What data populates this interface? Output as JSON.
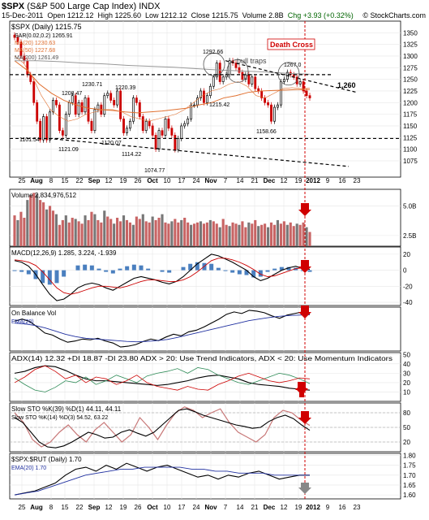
{
  "header": {
    "symbol": "$SPX",
    "name": "(S&P 500 Large Cap Index)",
    "exchange": "INDX",
    "date": "15-Dec-2011",
    "open": "Open 1212.12",
    "high": "High 1225.60",
    "low": "Low 1212.12",
    "close": "Close 1215.75",
    "volume": "Volume 2.8B",
    "change": "Chg +3.93 (+0.32%)",
    "watermark": "© StockCharts.com"
  },
  "colors": {
    "up": "#000000",
    "down": "#cc0000",
    "ma50": "#e07030",
    "ma200": "#999999",
    "annotation": "#d00000",
    "ema": "#2030a0"
  },
  "x_axis": {
    "ticks": [
      "25",
      "Aug",
      "8",
      "15",
      "22",
      "Sep",
      "12",
      "19",
      "26",
      "Oct",
      "10",
      "17",
      "24",
      "Nov",
      "7",
      "14",
      "21",
      "Dec",
      "12",
      "19",
      "2012",
      "9",
      "16",
      "23"
    ],
    "bold": [
      "Aug",
      "Sep",
      "Oct",
      "Nov",
      "Dec",
      "2012"
    ]
  },
  "chart_data": [
    {
      "type": "line",
      "panel": "price",
      "title": "$SPX (Daily) 1215.75",
      "legend": [
        "SAR(0.02,0.2) 1265.91",
        "MA(20) 1230.63",
        "MA(50) 1227.68",
        "MA(200) 1261.49"
      ],
      "ylim": [
        1040,
        1375
      ],
      "yticks": [
        1075,
        1100,
        1125,
        1150,
        1175,
        1200,
        1225,
        1250,
        1275,
        1300,
        1325,
        1350
      ],
      "annotations": [
        "1101.54",
        "1121.09",
        "1208.47",
        "1230.71",
        "1120.07",
        "1114.22",
        "1220.39",
        "1074.77",
        "1292.66",
        "1215.42",
        "1158.66",
        "1267.0",
        "bull traps",
        "Death Cross",
        "1,260"
      ],
      "series": [
        {
          "name": "SPX close",
          "values": [
            1340,
            1330,
            1300,
            1290,
            1260,
            1245,
            1200,
            1160,
            1120,
            1170,
            1120,
            1180,
            1205,
            1195,
            1140,
            1130,
            1175,
            1200,
            1215,
            1175,
            1200,
            1180,
            1210,
            1160,
            1140,
            1185,
            1195,
            1175,
            1215,
            1220,
            1205,
            1195,
            1225,
            1165,
            1135,
            1145,
            1160,
            1210,
            1200,
            1170,
            1140,
            1160,
            1150,
            1130,
            1100,
            1140,
            1130,
            1165,
            1145,
            1130,
            1099,
            1123,
            1150,
            1155,
            1165,
            1195,
            1195,
            1210,
            1225,
            1200,
            1215,
            1235,
            1255,
            1285,
            1245,
            1255,
            1260,
            1290,
            1285,
            1275,
            1265,
            1250,
            1260,
            1240,
            1255,
            1230,
            1225,
            1210,
            1200,
            1195,
            1160,
            1190,
            1195,
            1245,
            1250,
            1265,
            1260,
            1255,
            1240,
            1245,
            1225,
            1215,
            1210
          ]
        },
        {
          "name": "MA(20)",
          "values": [
            1300,
            1285,
            1255,
            1215,
            1185,
            1170,
            1160,
            1165,
            1175,
            1180,
            1185,
            1185,
            1180,
            1170,
            1165,
            1160,
            1165,
            1170,
            1175,
            1185,
            1200,
            1215,
            1225,
            1230,
            1240,
            1245,
            1235,
            1215,
            1210,
            1220,
            1230,
            1232,
            1230,
            1231
          ]
        },
        {
          "name": "MA(50)",
          "values": [
            1290,
            1270,
            1240,
            1220,
            1205,
            1195,
            1188,
            1185,
            1183,
            1180,
            1178,
            1180,
            1182,
            1185,
            1188,
            1195,
            1200,
            1210,
            1215,
            1222,
            1225,
            1226,
            1227,
            1228,
            1228
          ]
        },
        {
          "name": "MA(200)",
          "values": [
            1290,
            1290,
            1288,
            1285,
            1283,
            1280,
            1278,
            1276,
            1273,
            1270,
            1268,
            1266,
            1263,
            1261
          ]
        }
      ]
    },
    {
      "type": "bar",
      "panel": "volume",
      "title": "Volume 2,834,976,512",
      "ylim": [
        1.6,
        6.4
      ],
      "yticks": [
        "2.5B",
        "5.0B"
      ],
      "values": [
        4.2,
        3.8,
        4.5,
        4.0,
        5.5,
        5.9,
        6.1,
        6.0,
        5.5,
        5.3,
        4.7,
        5.0,
        4.6,
        4.3,
        3.4,
        3.8,
        4.2,
        3.6,
        4.0,
        3.9,
        3.7,
        3.5,
        4.2,
        3.8,
        4.5,
        4.3,
        3.8,
        3.6,
        4.6,
        4.1,
        3.9,
        3.5,
        4.0,
        3.7,
        4.2,
        3.8,
        3.6,
        3.4,
        4.1,
        3.9,
        4.3,
        3.7,
        3.6,
        4.1,
        3.8,
        4.0,
        4.3,
        3.6,
        3.5,
        3.7,
        3.9,
        3.6,
        3.8,
        4.0,
        3.6,
        3.4,
        3.5,
        3.6,
        3.7,
        3.5,
        3.6,
        3.8,
        3.7,
        3.5,
        3.2,
        3.9,
        3.4,
        3.3,
        3.6,
        3.5,
        3.4,
        3.7,
        3.2,
        3.6,
        3.5,
        3.8,
        3.3,
        3.4,
        3.5,
        3.2,
        3.6,
        3.4,
        3.8,
        3.5,
        3.7,
        3.4,
        3.6,
        3.3,
        3.5,
        3.4,
        3.6,
        3.2,
        2.8
      ]
    },
    {
      "type": "line",
      "panel": "macd",
      "title": "MACD(12,26,9) 1.285, 3.224, -1.939",
      "ylim": [
        -44,
        29
      ],
      "yticks": [
        -40,
        -20,
        0,
        20
      ],
      "series": [
        {
          "name": "MACD",
          "values": [
            12,
            10,
            5,
            -5,
            -18,
            -30,
            -38,
            -36,
            -30,
            -22,
            -18,
            -16,
            -18,
            -22,
            -25,
            -20,
            -15,
            -10,
            -8,
            -10,
            -12,
            -15,
            -17,
            -14,
            -8,
            0,
            8,
            14,
            20,
            18,
            14,
            10,
            5,
            0,
            -8,
            -13,
            -10,
            -5,
            0,
            3,
            5,
            2,
            1
          ]
        },
        {
          "name": "Signal",
          "values": [
            13,
            12,
            10,
            6,
            -2,
            -12,
            -22,
            -28,
            -30,
            -28,
            -25,
            -22,
            -20,
            -20,
            -21,
            -22,
            -20,
            -17,
            -14,
            -12,
            -12,
            -13,
            -14,
            -14,
            -12,
            -8,
            -2,
            5,
            12,
            15,
            15,
            13,
            10,
            6,
            1,
            -5,
            -8,
            -7,
            -4,
            -1,
            2,
            3,
            3
          ]
        },
        {
          "name": "Histogram",
          "values": [
            -1,
            -2,
            -5,
            -11,
            -16,
            -18,
            -16,
            -8,
            0,
            6,
            7,
            6,
            2,
            -2,
            -4,
            2,
            5,
            7,
            6,
            2,
            0,
            -2,
            -3,
            0,
            4,
            8,
            10,
            9,
            8,
            3,
            -1,
            -3,
            -5,
            -6,
            -9,
            -8,
            -2,
            2,
            4,
            4,
            3,
            -1,
            -2
          ]
        }
      ]
    },
    {
      "type": "line",
      "panel": "obv",
      "title": "On Balance Vol",
      "legend": [
        "EMA(20)"
      ],
      "series": [
        {
          "name": "OBV",
          "values": [
            5,
            10,
            4,
            -10,
            -25,
            -30,
            -40,
            -48,
            -45,
            -40,
            -42,
            -38,
            -45,
            -50,
            -60,
            -58,
            -54,
            -46,
            -40,
            -44,
            -35,
            -28,
            -32,
            -22,
            -18,
            -10,
            0,
            10,
            22,
            28,
            24,
            32,
            30,
            26,
            18,
            12,
            20,
            24,
            28,
            22
          ]
        },
        {
          "name": "EMA(20)",
          "values": [
            0,
            -2,
            -6,
            -12,
            -20,
            -28,
            -34,
            -38,
            -40,
            -42,
            -44,
            -46,
            -47,
            -46,
            -44,
            -41,
            -36,
            -30,
            -24,
            -18,
            -12,
            -6,
            0,
            6,
            10,
            14,
            17,
            19,
            20,
            21
          ]
        }
      ]
    },
    {
      "type": "line",
      "panel": "adx",
      "title": "ADX(14) 12.32 +DI 18.87 -DI 23.80 ADX > 20: Use Trend Indicators, ADX < 20: Use Momentum Indicators",
      "ylim": [
        0,
        52
      ],
      "yticks": [
        10,
        20,
        30,
        40,
        50
      ],
      "series": [
        {
          "name": "ADX",
          "values": [
            30,
            32,
            36,
            38,
            37,
            33,
            28,
            24,
            22,
            22,
            21,
            20,
            19,
            18,
            17,
            18,
            20,
            22,
            25,
            27,
            28,
            26,
            24,
            20,
            18,
            17,
            16,
            14,
            13,
            12
          ]
        },
        {
          "name": "+DI",
          "values": [
            25,
            18,
            12,
            10,
            15,
            22,
            20,
            26,
            18,
            22,
            28,
            24,
            20,
            27,
            30,
            32,
            35,
            30,
            36,
            34,
            28,
            24,
            20,
            18,
            22,
            26,
            30,
            28,
            24,
            19
          ]
        },
        {
          "name": "-DI",
          "values": [
            20,
            26,
            34,
            38,
            32,
            24,
            28,
            20,
            26,
            24,
            18,
            22,
            28,
            20,
            16,
            14,
            12,
            16,
            13,
            12,
            18,
            22,
            27,
            30,
            26,
            22,
            20,
            22,
            25,
            24
          ]
        }
      ]
    },
    {
      "type": "line",
      "panel": "stochastics",
      "title": "Slow STO %K(39) %D(1) 44.11, 44.11",
      "legend": [
        "Slow STO %K(14) %D(3) 54.52, 63.22"
      ],
      "ylim": [
        0,
        100
      ],
      "yticks": [
        20,
        50,
        80
      ],
      "series": [
        {
          "name": "Slow STO %K(39)",
          "values": [
            70,
            60,
            40,
            20,
            10,
            8,
            12,
            20,
            30,
            40,
            35,
            28,
            30,
            40,
            45,
            38,
            32,
            40,
            55,
            70,
            85,
            88,
            82,
            75,
            70,
            65,
            60,
            55,
            52,
            48,
            50,
            62,
            70,
            75,
            68,
            55,
            44
          ]
        },
        {
          "name": "Slow STO %K(14)",
          "values": [
            80,
            60,
            25,
            10,
            20,
            40,
            55,
            35,
            20,
            45,
            60,
            40,
            20,
            35,
            70,
            50,
            25,
            55,
            80,
            92,
            85,
            70,
            80,
            88,
            60,
            40,
            30,
            20,
            35,
            70,
            85,
            80,
            65,
            54
          ]
        }
      ]
    },
    {
      "type": "line",
      "panel": "ratio",
      "title": "$SPX:$RUT (Daily) 1.70",
      "legend": [
        "EMA(20) 1.70"
      ],
      "ylim": [
        1.58,
        1.81
      ],
      "yticks": [
        1.6,
        1.65,
        1.7,
        1.75,
        1.8
      ],
      "series": [
        {
          "name": "$SPX:$RUT",
          "values": [
            1.6,
            1.61,
            1.62,
            1.64,
            1.66,
            1.7,
            1.73,
            1.74,
            1.72,
            1.75,
            1.73,
            1.76,
            1.74,
            1.72,
            1.74,
            1.75,
            1.73,
            1.71,
            1.69,
            1.7,
            1.68,
            1.7,
            1.69,
            1.71,
            1.72,
            1.7,
            1.68,
            1.69,
            1.7,
            1.7
          ]
        },
        {
          "name": "EMA(20)",
          "values": [
            1.6,
            1.61,
            1.62,
            1.64,
            1.66,
            1.68,
            1.7,
            1.71,
            1.72,
            1.73,
            1.73,
            1.74,
            1.74,
            1.74,
            1.74,
            1.73,
            1.73,
            1.72,
            1.72,
            1.71,
            1.71,
            1.71,
            1.7,
            1.7,
            1.7,
            1.7
          ]
        }
      ]
    }
  ]
}
